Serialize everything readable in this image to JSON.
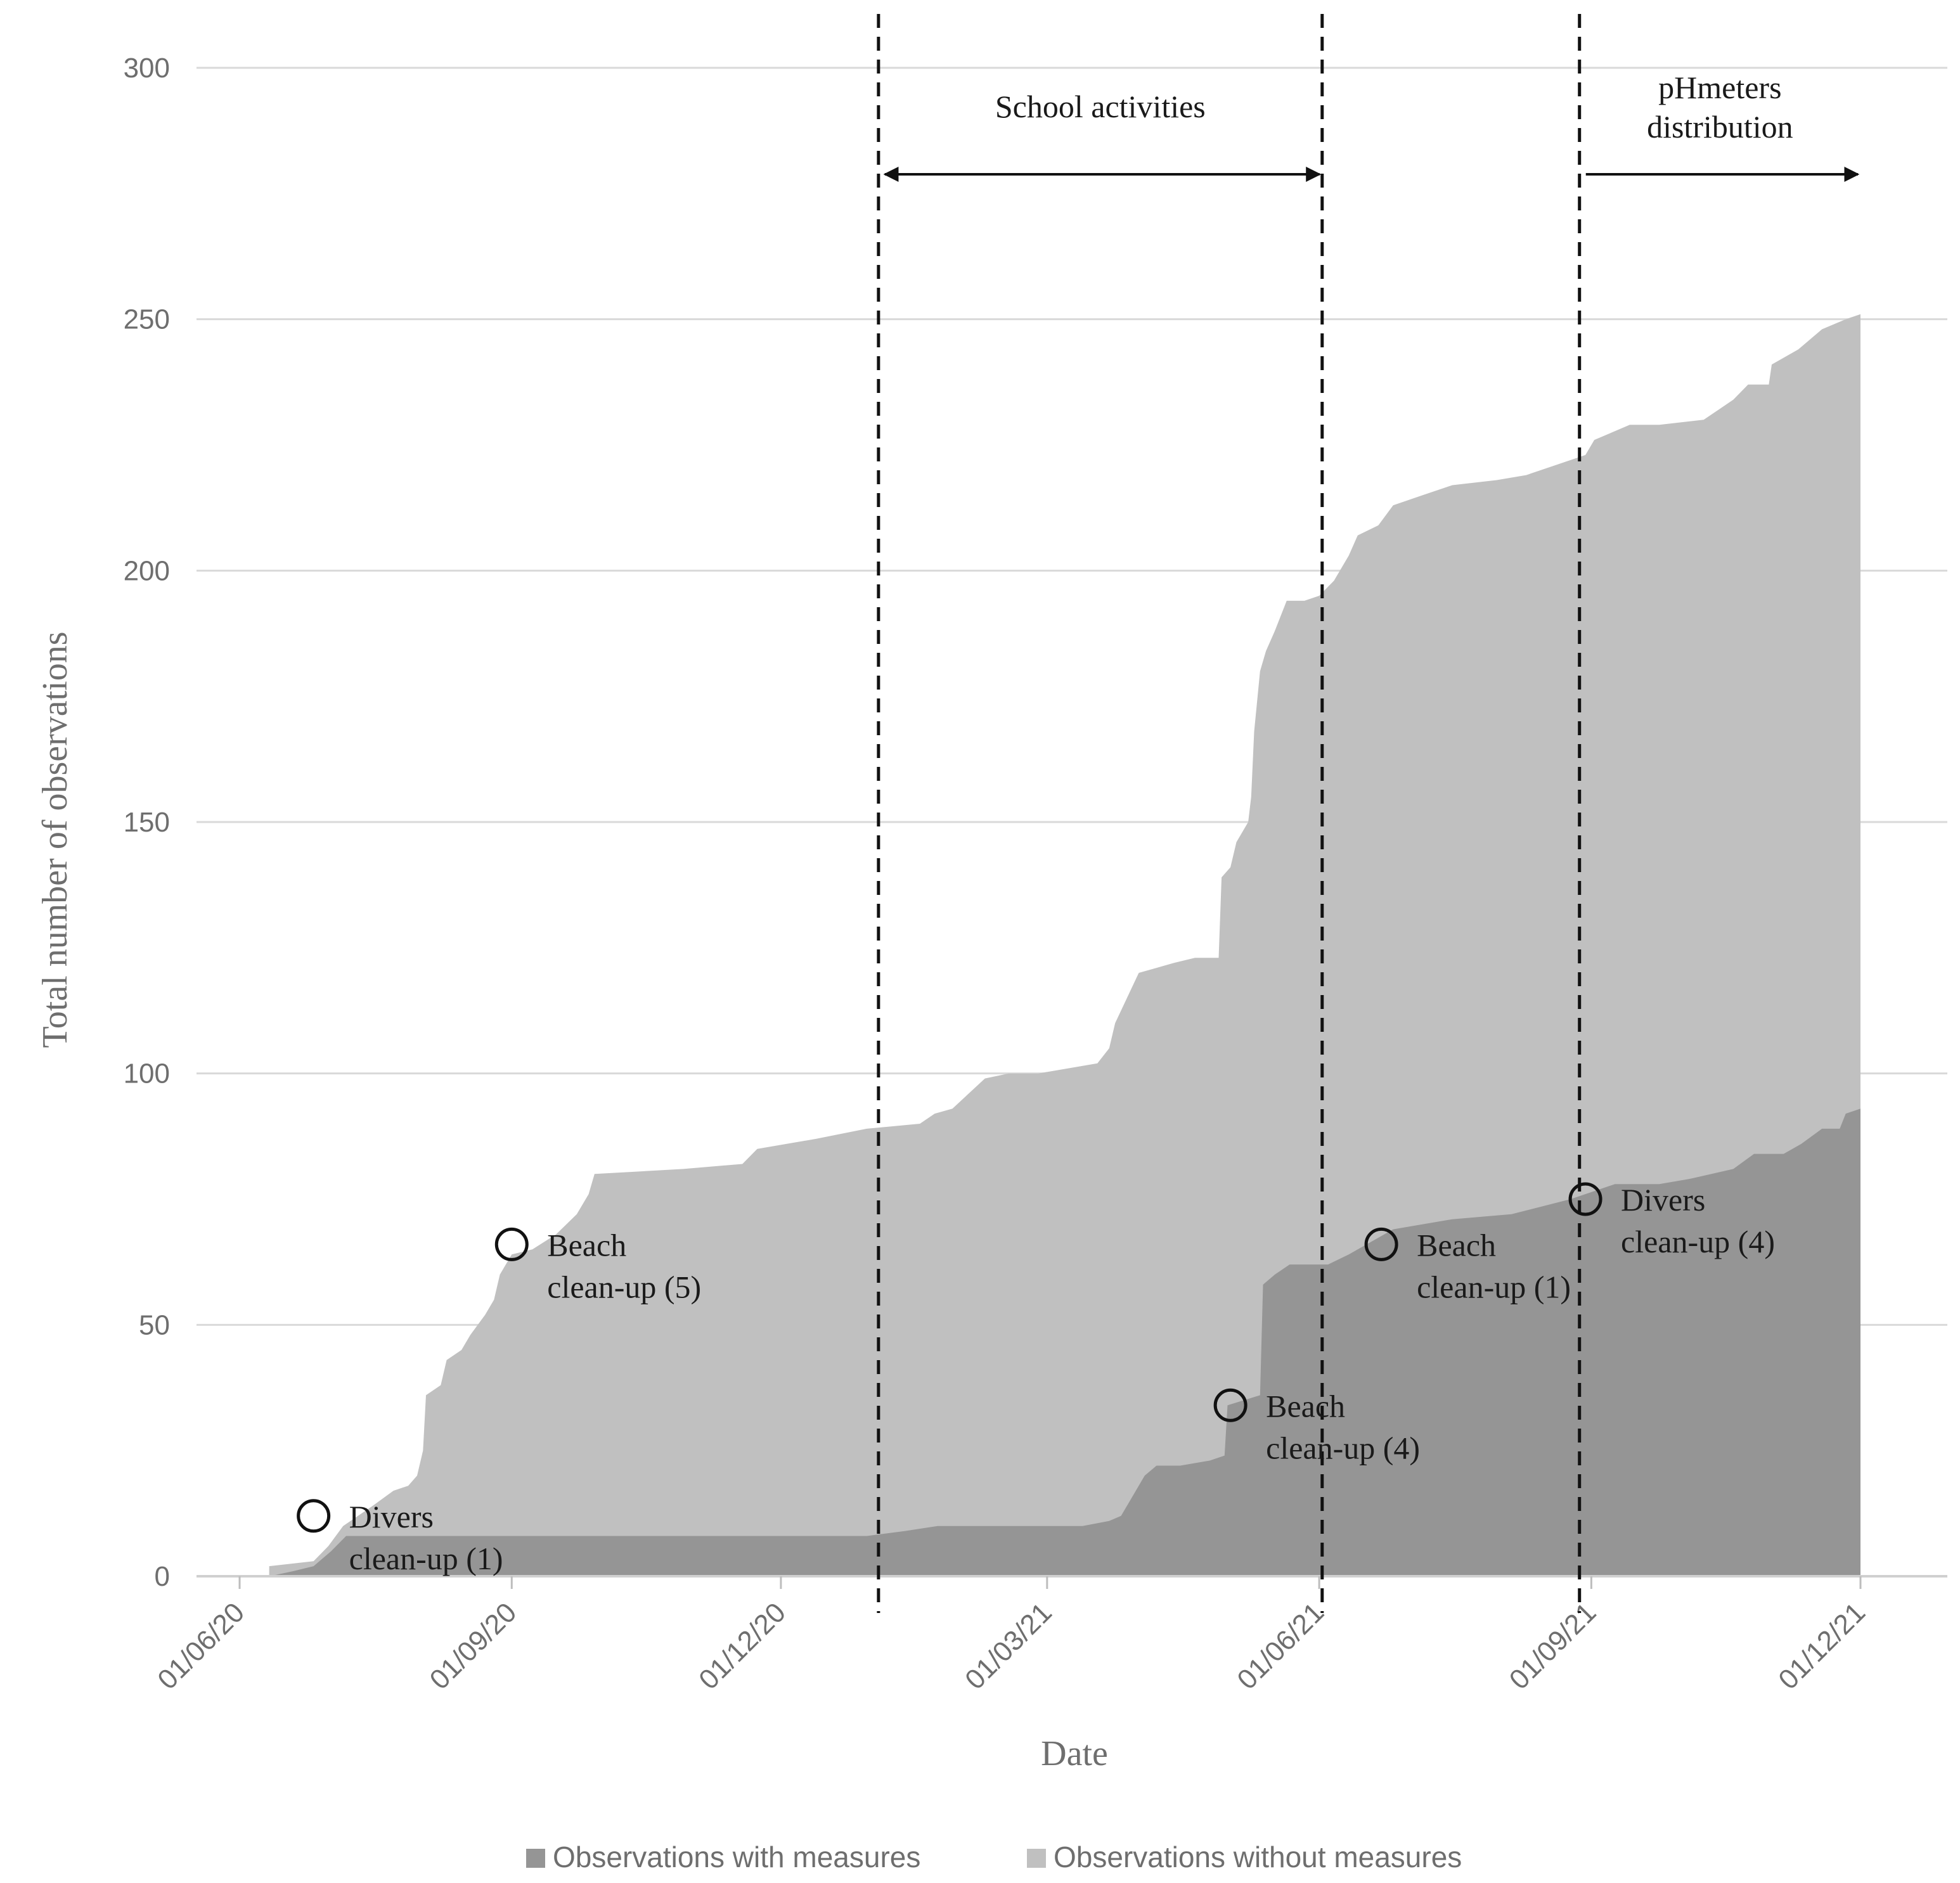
{
  "chart_data": {
    "type": "area",
    "stacked": true,
    "title": "",
    "xlabel": "Date",
    "ylabel": "Total number of observations",
    "x_ticks": [
      "01/06/20",
      "01/09/20",
      "01/12/20",
      "01/03/21",
      "01/06/21",
      "01/09/21",
      "01/12/21"
    ],
    "x_tick_days": [
      0,
      92,
      183,
      273,
      365,
      457,
      548
    ],
    "ylim": [
      0,
      300
    ],
    "y_ticks": [
      0,
      50,
      100,
      150,
      200,
      250,
      300
    ],
    "grid": true,
    "series": [
      {
        "name": "Observations with measures",
        "color": "#959595",
        "points": [
          [
            10,
            0
          ],
          [
            18,
            1
          ],
          [
            25,
            2
          ],
          [
            31,
            5
          ],
          [
            36,
            8
          ],
          [
            60,
            8
          ],
          [
            100,
            8
          ],
          [
            160,
            8
          ],
          [
            212,
            8
          ],
          [
            225,
            9
          ],
          [
            236,
            10
          ],
          [
            260,
            10
          ],
          [
            285,
            10
          ],
          [
            294,
            11
          ],
          [
            298,
            12
          ],
          [
            302,
            16
          ],
          [
            306,
            20
          ],
          [
            310,
            22
          ],
          [
            318,
            22
          ],
          [
            328,
            23
          ],
          [
            333,
            24
          ],
          [
            334,
            34
          ],
          [
            345,
            36
          ],
          [
            346,
            58
          ],
          [
            350,
            60
          ],
          [
            355,
            62
          ],
          [
            368,
            62
          ],
          [
            375,
            64
          ],
          [
            390,
            69
          ],
          [
            410,
            71
          ],
          [
            430,
            72
          ],
          [
            450,
            75
          ],
          [
            465,
            78
          ],
          [
            480,
            78
          ],
          [
            490,
            79
          ],
          [
            505,
            81
          ],
          [
            512,
            84
          ],
          [
            522,
            84
          ],
          [
            528,
            86
          ],
          [
            535,
            89
          ],
          [
            541,
            89
          ],
          [
            543,
            92
          ],
          [
            548,
            93
          ]
        ]
      },
      {
        "name": "Observations without measures",
        "color": "#c0c0c0",
        "total_points": [
          [
            10,
            2
          ],
          [
            25,
            3
          ],
          [
            30,
            6
          ],
          [
            35,
            10
          ],
          [
            45,
            14
          ],
          [
            52,
            17
          ],
          [
            57,
            18
          ],
          [
            60,
            20
          ],
          [
            62,
            25
          ],
          [
            63,
            36
          ],
          [
            68,
            38
          ],
          [
            70,
            43
          ],
          [
            75,
            45
          ],
          [
            78,
            48
          ],
          [
            83,
            52
          ],
          [
            86,
            55
          ],
          [
            88,
            60
          ],
          [
            92,
            64
          ],
          [
            99,
            65
          ],
          [
            107,
            68
          ],
          [
            114,
            72
          ],
          [
            118,
            76
          ],
          [
            120,
            80
          ],
          [
            150,
            81
          ],
          [
            170,
            82
          ],
          [
            175,
            85
          ],
          [
            195,
            87
          ],
          [
            212,
            89
          ],
          [
            230,
            90
          ],
          [
            235,
            92
          ],
          [
            241,
            93
          ],
          [
            252,
            99
          ],
          [
            260,
            100
          ],
          [
            270,
            100
          ],
          [
            290,
            102
          ],
          [
            294,
            105
          ],
          [
            296,
            110
          ],
          [
            300,
            115
          ],
          [
            304,
            120
          ],
          [
            310,
            121
          ],
          [
            316,
            122
          ],
          [
            323,
            123
          ],
          [
            331,
            123
          ],
          [
            332,
            139
          ],
          [
            335,
            141
          ],
          [
            337,
            146
          ],
          [
            341,
            150
          ],
          [
            342,
            155
          ],
          [
            343,
            168
          ],
          [
            345,
            180
          ],
          [
            347,
            184
          ],
          [
            350,
            188
          ],
          [
            354,
            194
          ],
          [
            360,
            194
          ],
          [
            365,
            195
          ],
          [
            370,
            198
          ],
          [
            375,
            203
          ],
          [
            378,
            207
          ],
          [
            385,
            209
          ],
          [
            390,
            213
          ],
          [
            400,
            215
          ],
          [
            410,
            217
          ],
          [
            425,
            218
          ],
          [
            435,
            219
          ],
          [
            445,
            221
          ],
          [
            455,
            223
          ],
          [
            458,
            226
          ],
          [
            470,
            229
          ],
          [
            480,
            229
          ],
          [
            495,
            230
          ],
          [
            500,
            232
          ],
          [
            505,
            234
          ],
          [
            510,
            237
          ],
          [
            517,
            237
          ],
          [
            518,
            241
          ],
          [
            527,
            244
          ],
          [
            535,
            248
          ],
          [
            543,
            250
          ],
          [
            548,
            251
          ]
        ]
      }
    ],
    "annotations": [
      {
        "lines": [
          "Divers",
          "clean-up (1)"
        ],
        "day": 25,
        "value": 12
      },
      {
        "lines": [
          "Beach",
          "clean-up (5)"
        ],
        "day": 92,
        "value": 66
      },
      {
        "lines": [
          "Beach",
          "clean-up (4)"
        ],
        "day": 335,
        "value": 34
      },
      {
        "lines": [
          "Beach",
          "clean-up (1)"
        ],
        "day": 386,
        "value": 66
      },
      {
        "lines": [
          "Divers",
          "clean-up (4)"
        ],
        "day": 455,
        "value": 75
      }
    ],
    "vertical_markers_days": [
      216,
      366,
      453
    ],
    "ranges": [
      {
        "label": [
          "School activities"
        ],
        "from_day": 216,
        "to_day": 366,
        "arrow_start": true,
        "arrow_end": true
      },
      {
        "label": [
          "pHmeters",
          "distribution"
        ],
        "from_day": 453,
        "to_day": 548,
        "arrow_start": false,
        "arrow_end": true
      }
    ],
    "legend_position": "bottom"
  }
}
